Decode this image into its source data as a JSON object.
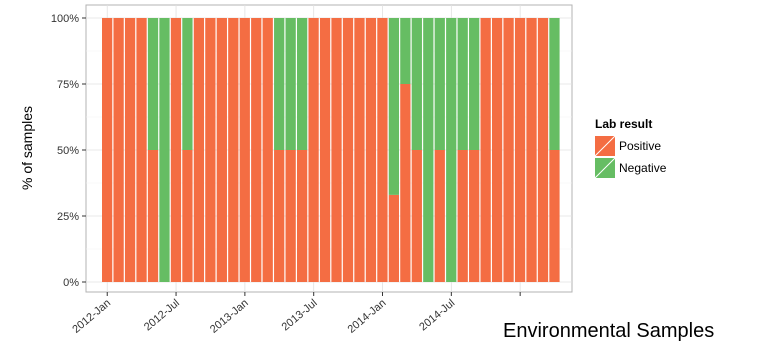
{
  "chart_data": {
    "type": "bar",
    "stacked": true,
    "ylabel": "% of samples",
    "xlabel": "",
    "ylim": [
      0,
      100
    ],
    "y_ticks": [
      "0%",
      "25%",
      "50%",
      "75%",
      "100%"
    ],
    "x_tick_labels": [
      "2012-Jan",
      "2012-Jul",
      "2013-Jan",
      "2013-Jul",
      "2014-Jan",
      "2014-Jul",
      ""
    ],
    "x_tick_month_index": [
      0,
      6,
      12,
      18,
      24,
      30,
      36
    ],
    "n_months": 40,
    "grid": true,
    "legend_position": "right",
    "legend_title": "Lab result",
    "series": [
      {
        "name": "Positive",
        "color": "#F46D43",
        "values": [
          100,
          100,
          100,
          100,
          50,
          0,
          100,
          50,
          100,
          100,
          100,
          100,
          100,
          100,
          100,
          50,
          50,
          50,
          100,
          100,
          100,
          100,
          100,
          100,
          100,
          33,
          75,
          50,
          0,
          50,
          0,
          50,
          50,
          100,
          100,
          100,
          100,
          100,
          100,
          50
        ]
      },
      {
        "name": "Negative",
        "color": "#66BD63",
        "values": [
          0,
          0,
          0,
          0,
          50,
          100,
          0,
          50,
          0,
          0,
          0,
          0,
          0,
          0,
          0,
          50,
          50,
          50,
          0,
          0,
          0,
          0,
          0,
          0,
          0,
          67,
          25,
          50,
          100,
          50,
          100,
          50,
          50,
          0,
          0,
          0,
          0,
          0,
          0,
          50
        ]
      }
    ]
  },
  "caption": "Environmental Samples"
}
